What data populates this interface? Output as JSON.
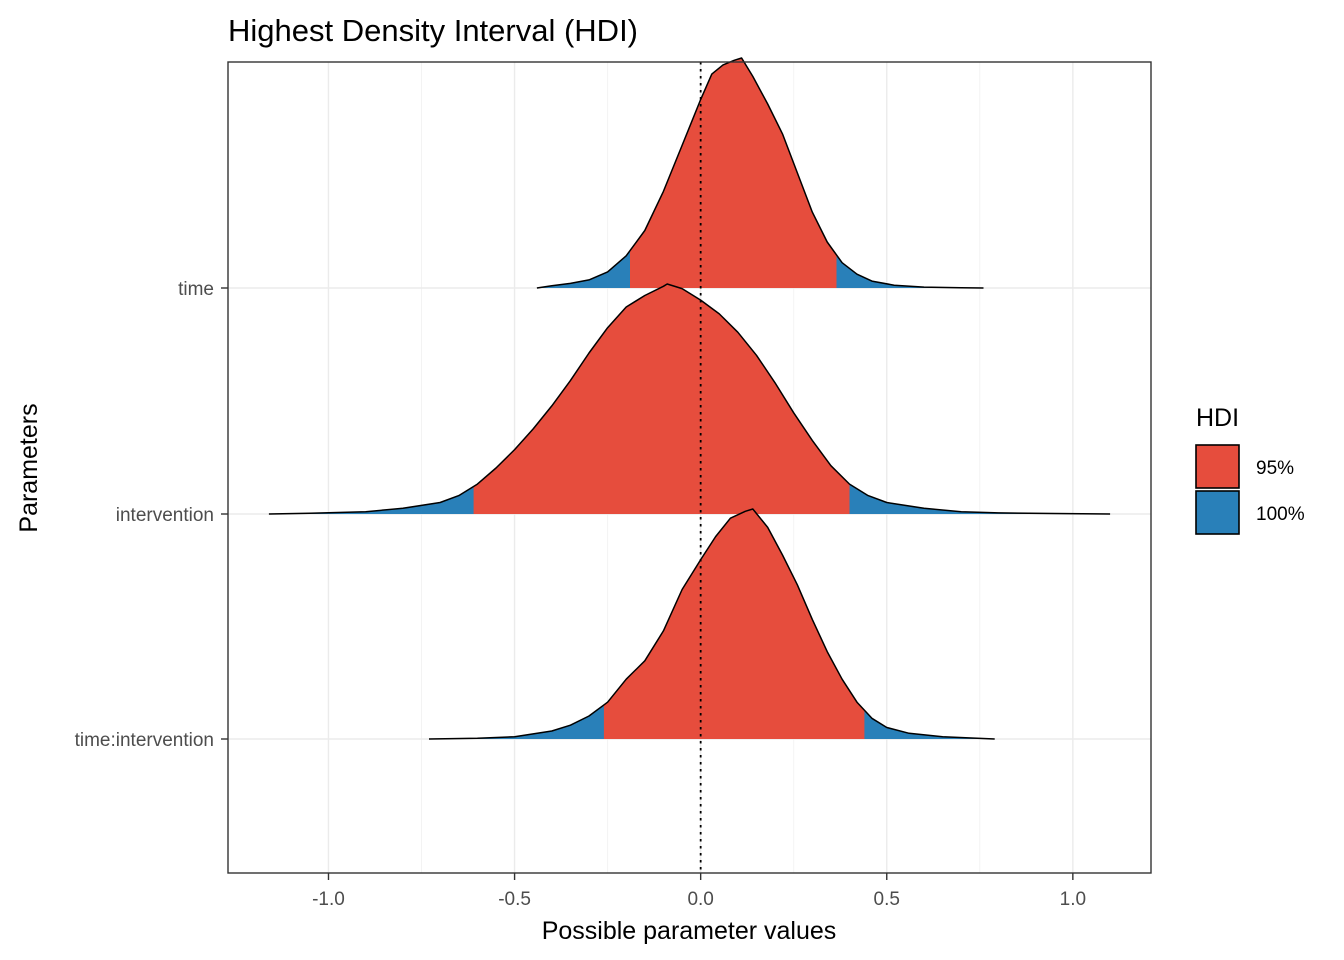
{
  "chart_data": {
    "type": "density_ridges",
    "title": "Highest Density Interval (HDI)",
    "xlabel": "Possible parameter values",
    "ylabel": "Parameters",
    "xlim": [
      -1.27,
      1.21
    ],
    "x_ticks": [
      -1.0,
      -0.5,
      0.0,
      0.5,
      1.0
    ],
    "x_tick_labels": [
      "-1.0",
      "-0.5",
      "0.0",
      "0.5",
      "1.0"
    ],
    "reference_line": {
      "x": 0.0,
      "style": "dotted"
    },
    "grid": true,
    "legend": {
      "title": "HDI",
      "position": "right",
      "entries": [
        {
          "label": "95%",
          "color": "#e64d3d"
        },
        {
          "label": "100%",
          "color": "#2980b9"
        }
      ]
    },
    "colors": {
      "hdi95": "#e64d3d",
      "hdi100": "#2980b9",
      "outline": "#000000"
    },
    "series": [
      {
        "name": "time",
        "hdi95": [
          -0.19,
          0.365
        ],
        "range": [
          -0.44,
          0.76
        ],
        "density": [
          [
            -0.44,
            0.0
          ],
          [
            -0.4,
            0.01
          ],
          [
            -0.35,
            0.02
          ],
          [
            -0.3,
            0.035
          ],
          [
            -0.25,
            0.07
          ],
          [
            -0.2,
            0.14
          ],
          [
            -0.15,
            0.25
          ],
          [
            -0.1,
            0.42
          ],
          [
            -0.05,
            0.62
          ],
          [
            0.0,
            0.82
          ],
          [
            0.03,
            0.93
          ],
          [
            0.06,
            0.97
          ],
          [
            0.09,
            0.99
          ],
          [
            0.11,
            1.0
          ],
          [
            0.14,
            0.92
          ],
          [
            0.18,
            0.8
          ],
          [
            0.22,
            0.67
          ],
          [
            0.26,
            0.5
          ],
          [
            0.3,
            0.33
          ],
          [
            0.34,
            0.2
          ],
          [
            0.38,
            0.11
          ],
          [
            0.42,
            0.06
          ],
          [
            0.46,
            0.03
          ],
          [
            0.52,
            0.012
          ],
          [
            0.6,
            0.004
          ],
          [
            0.7,
            0.001
          ],
          [
            0.76,
            0.0
          ]
        ]
      },
      {
        "name": "intervention",
        "hdi95": [
          -0.61,
          0.4
        ],
        "range": [
          -1.16,
          1.1
        ],
        "density": [
          [
            -1.16,
            0.0
          ],
          [
            -1.05,
            0.003
          ],
          [
            -0.9,
            0.01
          ],
          [
            -0.8,
            0.025
          ],
          [
            -0.7,
            0.05
          ],
          [
            -0.65,
            0.08
          ],
          [
            -0.6,
            0.13
          ],
          [
            -0.55,
            0.2
          ],
          [
            -0.5,
            0.28
          ],
          [
            -0.45,
            0.37
          ],
          [
            -0.4,
            0.47
          ],
          [
            -0.35,
            0.58
          ],
          [
            -0.3,
            0.7
          ],
          [
            -0.25,
            0.81
          ],
          [
            -0.2,
            0.9
          ],
          [
            -0.15,
            0.95
          ],
          [
            -0.1,
            0.99
          ],
          [
            -0.09,
            1.0
          ],
          [
            -0.05,
            0.98
          ],
          [
            0.0,
            0.93
          ],
          [
            0.05,
            0.87
          ],
          [
            0.1,
            0.79
          ],
          [
            0.15,
            0.69
          ],
          [
            0.2,
            0.57
          ],
          [
            0.25,
            0.44
          ],
          [
            0.3,
            0.32
          ],
          [
            0.35,
            0.21
          ],
          [
            0.4,
            0.13
          ],
          [
            0.45,
            0.08
          ],
          [
            0.5,
            0.05
          ],
          [
            0.6,
            0.025
          ],
          [
            0.7,
            0.01
          ],
          [
            0.8,
            0.005
          ],
          [
            0.95,
            0.002
          ],
          [
            1.1,
            0.0
          ]
        ]
      },
      {
        "name": "time:intervention",
        "hdi95": [
          -0.26,
          0.44
        ],
        "range": [
          -0.73,
          0.79
        ],
        "density": [
          [
            -0.73,
            0.0
          ],
          [
            -0.6,
            0.003
          ],
          [
            -0.5,
            0.01
          ],
          [
            -0.4,
            0.035
          ],
          [
            -0.35,
            0.06
          ],
          [
            -0.3,
            0.1
          ],
          [
            -0.25,
            0.16
          ],
          [
            -0.2,
            0.26
          ],
          [
            -0.15,
            0.34
          ],
          [
            -0.1,
            0.47
          ],
          [
            -0.05,
            0.65
          ],
          [
            0.0,
            0.78
          ],
          [
            0.04,
            0.88
          ],
          [
            0.08,
            0.96
          ],
          [
            0.12,
            0.99
          ],
          [
            0.14,
            1.0
          ],
          [
            0.18,
            0.92
          ],
          [
            0.22,
            0.8
          ],
          [
            0.26,
            0.67
          ],
          [
            0.3,
            0.52
          ],
          [
            0.34,
            0.38
          ],
          [
            0.38,
            0.26
          ],
          [
            0.42,
            0.16
          ],
          [
            0.46,
            0.09
          ],
          [
            0.5,
            0.05
          ],
          [
            0.56,
            0.025
          ],
          [
            0.65,
            0.01
          ],
          [
            0.79,
            0.0
          ]
        ]
      }
    ]
  }
}
